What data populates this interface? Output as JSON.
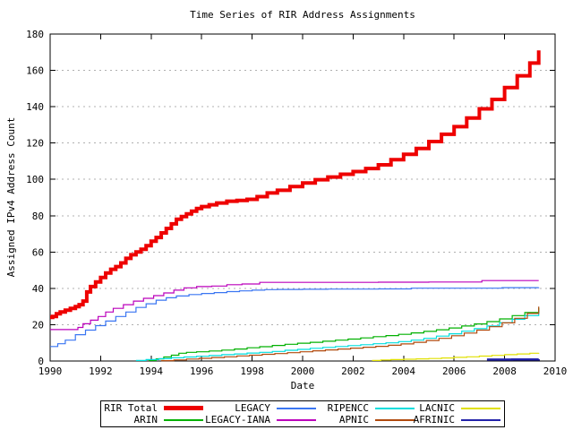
{
  "chart_data": {
    "type": "line",
    "title": "Time Series of RIR Address Assignments",
    "xlabel": "Date",
    "ylabel": "Assigned IPv4 Address Count",
    "xlim": [
      1990,
      2010
    ],
    "ylim": [
      0,
      180
    ],
    "xtick_step": 2,
    "ytick_step": 20,
    "xticks": [
      1990,
      1992,
      1994,
      1996,
      1998,
      2000,
      2002,
      2004,
      2006,
      2008,
      2010
    ],
    "yticks": [
      0,
      20,
      40,
      60,
      80,
      100,
      120,
      140,
      160,
      180
    ],
    "grid": "horizontal-dashed-gray",
    "grid_color": "#b0b0b0",
    "axis_color": "#000000",
    "legend_position": "below-plot-boxed",
    "series": [
      {
        "name": "RIR Total",
        "color": "#ee0000",
        "width": 4,
        "points": [
          [
            1990.0,
            24
          ],
          [
            1990.1,
            24.5
          ],
          [
            1990.25,
            26
          ],
          [
            1990.4,
            27
          ],
          [
            1990.6,
            28
          ],
          [
            1990.8,
            29
          ],
          [
            1991.0,
            30
          ],
          [
            1991.15,
            31
          ],
          [
            1991.3,
            33
          ],
          [
            1991.45,
            38
          ],
          [
            1991.6,
            41
          ],
          [
            1991.8,
            43.5
          ],
          [
            1992.0,
            46
          ],
          [
            1992.2,
            48.5
          ],
          [
            1992.4,
            50.5
          ],
          [
            1992.6,
            52
          ],
          [
            1992.8,
            54
          ],
          [
            1993.0,
            56.5
          ],
          [
            1993.2,
            58.5
          ],
          [
            1993.4,
            60
          ],
          [
            1993.6,
            61.5
          ],
          [
            1993.8,
            63.5
          ],
          [
            1994.0,
            66
          ],
          [
            1994.2,
            68
          ],
          [
            1994.4,
            70.5
          ],
          [
            1994.6,
            73
          ],
          [
            1994.8,
            75.5
          ],
          [
            1995.0,
            78
          ],
          [
            1995.2,
            79.5
          ],
          [
            1995.4,
            81
          ],
          [
            1995.6,
            82.5
          ],
          [
            1995.8,
            84
          ],
          [
            1996.0,
            85
          ],
          [
            1996.3,
            86
          ],
          [
            1996.6,
            87
          ],
          [
            1997.0,
            88
          ],
          [
            1997.4,
            88.4
          ],
          [
            1997.8,
            89
          ],
          [
            1998.2,
            90.5
          ],
          [
            1998.6,
            92.5
          ],
          [
            1999.0,
            94
          ],
          [
            1999.5,
            96
          ],
          [
            2000.0,
            98
          ],
          [
            2000.5,
            99.8
          ],
          [
            2001.0,
            101.3
          ],
          [
            2001.5,
            102.8
          ],
          [
            2002.0,
            104.3
          ],
          [
            2002.5,
            106
          ],
          [
            2003.0,
            108
          ],
          [
            2003.5,
            110.8
          ],
          [
            2004.0,
            113.8
          ],
          [
            2004.5,
            117
          ],
          [
            2005.0,
            120.8
          ],
          [
            2005.5,
            124.8
          ],
          [
            2006.0,
            129
          ],
          [
            2006.5,
            133.8
          ],
          [
            2007.0,
            138.8
          ],
          [
            2007.5,
            144
          ],
          [
            2008.0,
            150.5
          ],
          [
            2008.5,
            157
          ],
          [
            2009.0,
            164
          ],
          [
            2009.35,
            171
          ]
        ]
      },
      {
        "name": "ARIN",
        "color": "#00b000",
        "width": 1.2,
        "points": [
          [
            1993.9,
            0.3
          ],
          [
            1994.2,
            1.2
          ],
          [
            1994.5,
            2.2
          ],
          [
            1994.8,
            3.2
          ],
          [
            1995.1,
            4.3
          ],
          [
            1995.4,
            4.8
          ],
          [
            1995.8,
            5.1
          ],
          [
            1996.3,
            5.5
          ],
          [
            1996.8,
            6
          ],
          [
            1997.3,
            6.6
          ],
          [
            1997.8,
            7.3
          ],
          [
            1998.3,
            7.9
          ],
          [
            1998.8,
            8.6
          ],
          [
            1999.3,
            9.2
          ],
          [
            1999.8,
            9.8
          ],
          [
            2000.3,
            10.3
          ],
          [
            2000.8,
            10.9
          ],
          [
            2001.3,
            11.5
          ],
          [
            2001.8,
            12.1
          ],
          [
            2002.3,
            12.7
          ],
          [
            2002.8,
            13.4
          ],
          [
            2003.3,
            14
          ],
          [
            2003.8,
            14.7
          ],
          [
            2004.3,
            15.5
          ],
          [
            2004.8,
            16.3
          ],
          [
            2005.3,
            17.2
          ],
          [
            2005.8,
            18.2
          ],
          [
            2006.3,
            19.3
          ],
          [
            2006.8,
            20.4
          ],
          [
            2007.3,
            21.7
          ],
          [
            2007.8,
            23.2
          ],
          [
            2008.3,
            25
          ],
          [
            2008.8,
            26.7
          ],
          [
            2009.35,
            29.3
          ]
        ]
      },
      {
        "name": "LEGACY",
        "color": "#3a76f2",
        "width": 1.2,
        "points": [
          [
            1990,
            8
          ],
          [
            1990.3,
            9.5
          ],
          [
            1990.6,
            11.5
          ],
          [
            1991,
            14.5
          ],
          [
            1991.4,
            17
          ],
          [
            1991.8,
            19.5
          ],
          [
            1992.2,
            22
          ],
          [
            1992.6,
            24.5
          ],
          [
            1993,
            27
          ],
          [
            1993.4,
            29.5
          ],
          [
            1993.8,
            31.5
          ],
          [
            1994.2,
            33.5
          ],
          [
            1994.6,
            34.8
          ],
          [
            1995,
            35.8
          ],
          [
            1995.5,
            36.6
          ],
          [
            1996,
            37.2
          ],
          [
            1996.5,
            37.7
          ],
          [
            1997,
            38.2
          ],
          [
            1997.5,
            38.6
          ],
          [
            1998,
            39
          ],
          [
            1998.5,
            39.3
          ],
          [
            1999,
            39.4
          ],
          [
            2000,
            39.5
          ],
          [
            2001,
            39.6
          ],
          [
            2002,
            39.6
          ],
          [
            2003,
            39.7
          ],
          [
            2004.3,
            40.1
          ],
          [
            2006,
            40.1
          ],
          [
            2007.9,
            40.4
          ],
          [
            2009.35,
            40.5
          ]
        ]
      },
      {
        "name": "LEGACY-IANA",
        "color": "#bb00bb",
        "width": 1.2,
        "points": [
          [
            1990,
            17.3
          ],
          [
            1990.8,
            17.3
          ],
          [
            1991.1,
            18.5
          ],
          [
            1991.3,
            20.5
          ],
          [
            1991.6,
            22.5
          ],
          [
            1991.9,
            24.5
          ],
          [
            1992.2,
            27
          ],
          [
            1992.5,
            29
          ],
          [
            1992.9,
            31
          ],
          [
            1993.3,
            33
          ],
          [
            1993.7,
            34.5
          ],
          [
            1994.1,
            36
          ],
          [
            1994.5,
            37.5
          ],
          [
            1994.9,
            39
          ],
          [
            1995.3,
            40.3
          ],
          [
            1995.8,
            41
          ],
          [
            1996.4,
            41.3
          ],
          [
            1997,
            42
          ],
          [
            1997.6,
            42.4
          ],
          [
            1998.3,
            43.3
          ],
          [
            2000,
            43.3
          ],
          [
            2003,
            43.4
          ],
          [
            2005,
            43.5
          ],
          [
            2007.1,
            44.3
          ],
          [
            2009.35,
            44.3
          ]
        ]
      },
      {
        "name": "RIPENCC",
        "color": "#00dddd",
        "width": 1.2,
        "points": [
          [
            1993.4,
            0.3
          ],
          [
            1993.8,
            0.8
          ],
          [
            1994.3,
            1.3
          ],
          [
            1994.8,
            1.8
          ],
          [
            1995.3,
            2.2
          ],
          [
            1995.8,
            2.6
          ],
          [
            1996.3,
            3
          ],
          [
            1996.8,
            3.5
          ],
          [
            1997.3,
            3.9
          ],
          [
            1997.8,
            4.4
          ],
          [
            1998.3,
            4.8
          ],
          [
            1998.8,
            5.3
          ],
          [
            1999.3,
            5.9
          ],
          [
            1999.8,
            6.4
          ],
          [
            2000.3,
            7
          ],
          [
            2000.8,
            7.5
          ],
          [
            2001.3,
            8
          ],
          [
            2001.8,
            8.5
          ],
          [
            2002.3,
            9
          ],
          [
            2002.8,
            9.5
          ],
          [
            2003.3,
            10
          ],
          [
            2003.8,
            10.7
          ],
          [
            2004.3,
            11.5
          ],
          [
            2004.8,
            12.5
          ],
          [
            2005.3,
            13.7
          ],
          [
            2005.8,
            15
          ],
          [
            2006.3,
            16.4
          ],
          [
            2006.8,
            17.8
          ],
          [
            2007.3,
            19.3
          ],
          [
            2007.8,
            21
          ],
          [
            2008.3,
            23
          ],
          [
            2008.8,
            25
          ],
          [
            2009.35,
            27.8
          ]
        ]
      },
      {
        "name": "APNIC",
        "color": "#b04a0e",
        "width": 1.2,
        "points": [
          [
            1994.4,
            0.2
          ],
          [
            1994.9,
            0.6
          ],
          [
            1995.4,
            1.1
          ],
          [
            1995.9,
            1.5
          ],
          [
            1996.4,
            1.9
          ],
          [
            1996.9,
            2.3
          ],
          [
            1997.4,
            2.8
          ],
          [
            1997.9,
            3.2
          ],
          [
            1998.4,
            3.7
          ],
          [
            1998.9,
            4.1
          ],
          [
            1999.4,
            4.6
          ],
          [
            1999.9,
            5.1
          ],
          [
            2000.4,
            5.6
          ],
          [
            2000.9,
            6.1
          ],
          [
            2001.4,
            6.6
          ],
          [
            2001.9,
            7.1
          ],
          [
            2002.4,
            7.6
          ],
          [
            2002.9,
            8.1
          ],
          [
            2003.4,
            8.7
          ],
          [
            2003.9,
            9.4
          ],
          [
            2004.4,
            10.3
          ],
          [
            2004.9,
            11.3
          ],
          [
            2005.4,
            12.5
          ],
          [
            2005.9,
            13.9
          ],
          [
            2006.4,
            15.4
          ],
          [
            2006.9,
            17
          ],
          [
            2007.4,
            18.9
          ],
          [
            2007.9,
            21
          ],
          [
            2008.4,
            23.5
          ],
          [
            2008.9,
            26.2
          ],
          [
            2009.35,
            30
          ]
        ]
      },
      {
        "name": "LACNIC",
        "color": "#e0e000",
        "width": 1.2,
        "points": [
          [
            2002.75,
            0.3
          ],
          [
            2003.1,
            0.6
          ],
          [
            2003.5,
            0.8
          ],
          [
            2004,
            1
          ],
          [
            2004.5,
            1.2
          ],
          [
            2005,
            1.4
          ],
          [
            2005.5,
            1.7
          ],
          [
            2006,
            2
          ],
          [
            2006.5,
            2.3
          ],
          [
            2007,
            2.7
          ],
          [
            2007.5,
            3.1
          ],
          [
            2008,
            3.5
          ],
          [
            2008.5,
            3.9
          ],
          [
            2009,
            4.3
          ],
          [
            2009.35,
            4.5
          ]
        ]
      },
      {
        "name": "AFRINIC",
        "color": "#2222aa",
        "width": 2.5,
        "points": [
          [
            2007.3,
            0.8
          ],
          [
            2008.3,
            0.9
          ],
          [
            2009.35,
            1
          ]
        ]
      }
    ],
    "legend_rows": [
      [
        "RIR Total",
        "LEGACY",
        "RIPENCC",
        "LACNIC"
      ],
      [
        "ARIN",
        "LEGACY-IANA",
        "APNIC",
        "AFRINIC"
      ]
    ]
  }
}
